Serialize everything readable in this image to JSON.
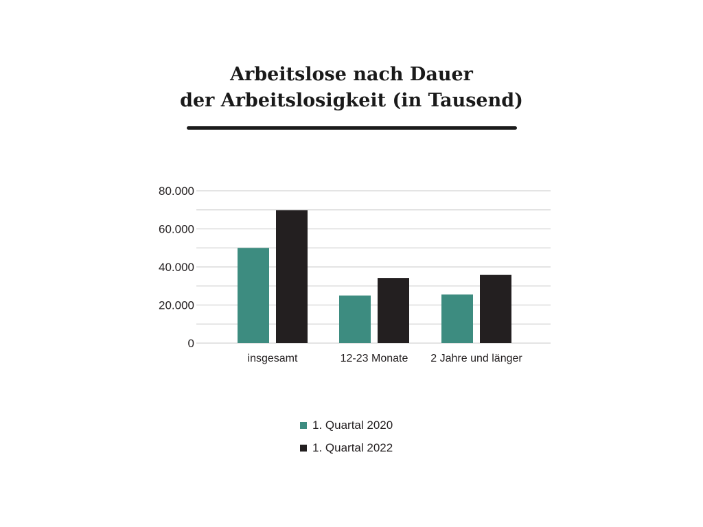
{
  "chart_data": {
    "type": "bar",
    "title_lines": [
      "Arbeitslose nach Dauer",
      "der Arbeitslosigkeit (in Tausend)"
    ],
    "categories": [
      "insgesamt",
      "12-23 Monate",
      "2 Jahre und länger"
    ],
    "series": [
      {
        "name": "1. Quartal 2020",
        "values": [
          50000,
          25000,
          25500
        ],
        "color": "#3d8c80"
      },
      {
        "name": "1. Quartal 2022",
        "values": [
          69800,
          34200,
          35800
        ],
        "color": "#231f20"
      }
    ],
    "yticks": [
      "0",
      "20.000",
      "40.000",
      "60.000",
      "80.000"
    ],
    "ytick_values": [
      0,
      20000,
      40000,
      60000,
      80000
    ],
    "ylim": [
      0,
      80000
    ],
    "grid_step": 10000,
    "grid": true,
    "legend_position": "bottom"
  }
}
